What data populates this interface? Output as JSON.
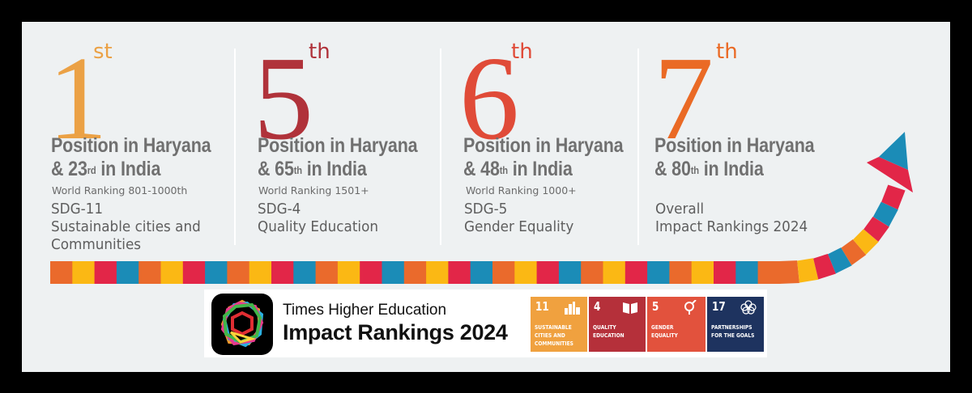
{
  "colors": {
    "background_frame": "#000000",
    "panel": "#eef1f2",
    "text_heading": "#707070",
    "band": [
      "#ea6a2c",
      "#fbb814",
      "#e22648",
      "#1b8cb7"
    ]
  },
  "rankings": [
    {
      "rank": "1",
      "suffix": "st",
      "color": "#eba145",
      "headline_line1": "Position in Haryana",
      "headline_line2_prefix": "& 23",
      "headline_line2_sup": "rd",
      "headline_line2_suffix": " in India",
      "world_ranking": "World Ranking 801-1000th",
      "sdg_line1": "SDG-11",
      "sdg_line2": "Sustainable cities and",
      "sdg_line3": "Communities"
    },
    {
      "rank": "5",
      "suffix": "th",
      "color": "#b0323a",
      "headline_line1": "Position in Haryana",
      "headline_line2_prefix": "& 65",
      "headline_line2_sup": "th",
      "headline_line2_suffix": " in India",
      "world_ranking": "World Ranking 1501+",
      "sdg_line1": "SDG-4",
      "sdg_line2": "Quality Education",
      "sdg_line3": ""
    },
    {
      "rank": "6",
      "suffix": "th",
      "color": "#e04b38",
      "headline_line1": "Position in Haryana",
      "headline_line2_prefix": "& 48",
      "headline_line2_sup": "th",
      "headline_line2_suffix": " in India",
      "world_ranking": "World Ranking 1000+",
      "sdg_line1": "SDG-5",
      "sdg_line2": "Gender Equality",
      "sdg_line3": ""
    },
    {
      "rank": "7",
      "suffix": "th",
      "color": "#ea6a25",
      "headline_line1": "Position in Haryana",
      "headline_line2_prefix": "& 80",
      "headline_line2_sup": "th",
      "headline_line2_suffix": " in India",
      "world_ranking": "",
      "sdg_line1": "Overall",
      "sdg_line2": "Impact Rankings 2024",
      "sdg_line3": ""
    }
  ],
  "logo": {
    "publisher": "Times Higher Education",
    "title": "Impact Rankings 2024"
  },
  "sdg_tiles": [
    {
      "number": "11",
      "label": "SUSTAINABLE\nCITIES AND\nCOMMUNITIES",
      "color": "#f0a13f",
      "icon": "city-buildings-icon"
    },
    {
      "number": "4",
      "label": "QUALITY\nEDUCATION",
      "color": "#b5303a",
      "icon": "open-book-icon"
    },
    {
      "number": "5",
      "label": "GENDER\nEQUALITY",
      "color": "#e2523d",
      "icon": "gender-symbol-icon"
    },
    {
      "number": "17",
      "label": "PARTNERSHIPS\nFOR THE GOALS",
      "color": "#1e335f",
      "icon": "flower-rings-icon"
    }
  ]
}
